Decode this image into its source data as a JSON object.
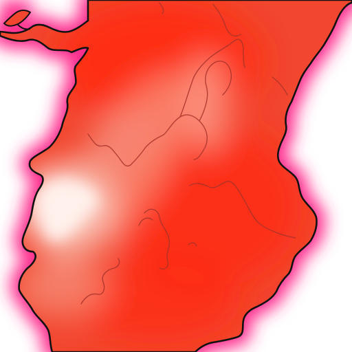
{
  "map": {
    "colors": {
      "sea": "#ffffff",
      "coast_glow": "#ff2f8e",
      "land_base": "#f2462e",
      "land_hot": "#ff2a0a",
      "land_pale": "#fde3dc",
      "coastline": "#111111",
      "boundary": "#a8322a"
    },
    "layers": [
      "sea",
      "coastal-glow",
      "heat-fill",
      "coastline",
      "internal-boundaries"
    ]
  }
}
